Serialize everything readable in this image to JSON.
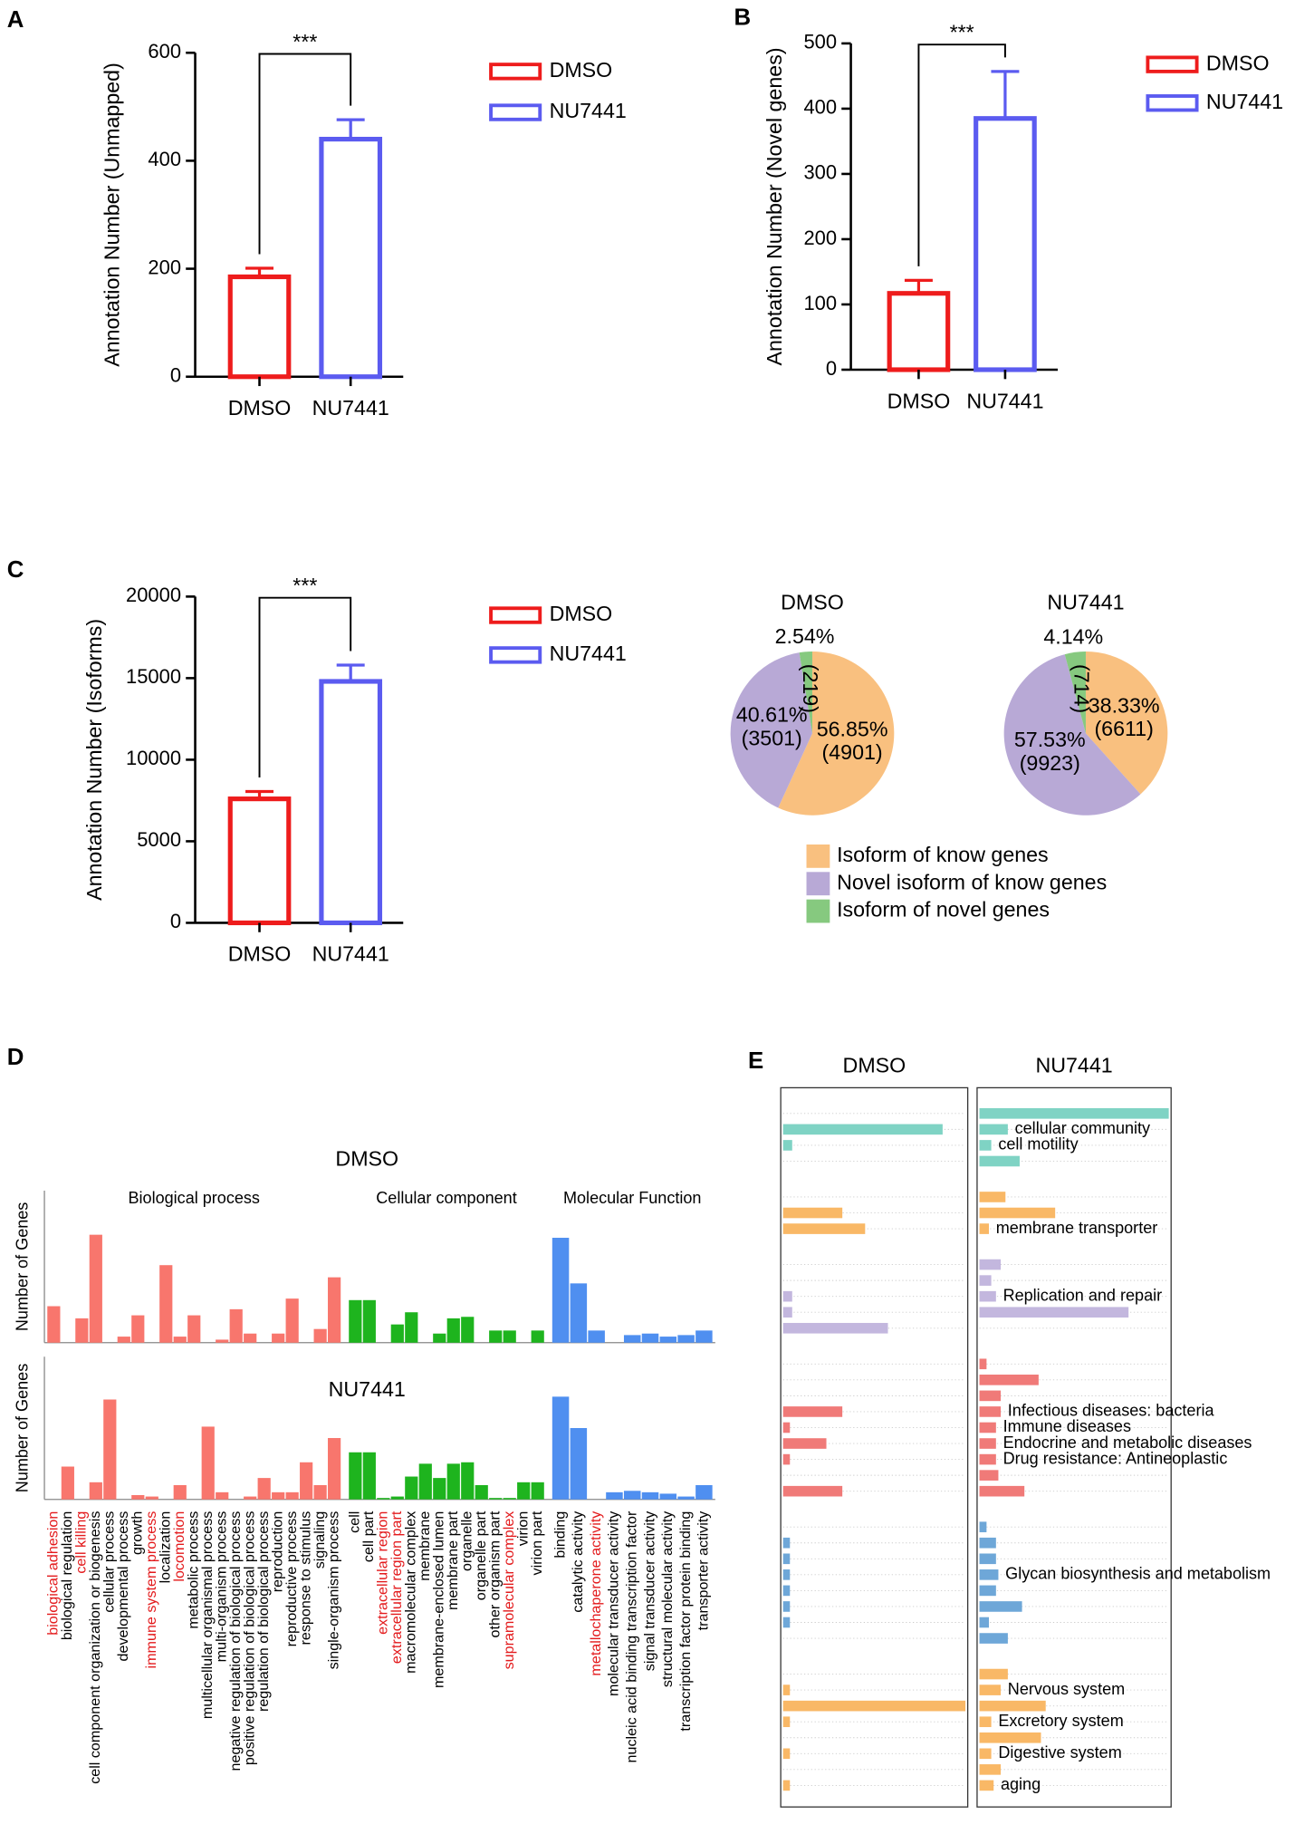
{
  "chart_data": [
    {
      "type": "bar",
      "panel": "A",
      "ylabel": "Annotation Number (Unmapped)",
      "categories": [
        "DMSO",
        "NU7441"
      ],
      "values": [
        185,
        440
      ],
      "errors": [
        16,
        36
      ],
      "colors": [
        "#ee1c1c",
        "#5b5bf0"
      ],
      "ylim": [
        0,
        600
      ],
      "yticks": [
        0,
        200,
        400,
        600
      ],
      "significance": "***"
    },
    {
      "type": "bar",
      "panel": "B",
      "ylabel": "Annotation Number (Novel genes)",
      "categories": [
        "DMSO",
        "NU7441"
      ],
      "values": [
        117,
        385
      ],
      "errors": [
        20,
        72
      ],
      "colors": [
        "#ee1c1c",
        "#5b5bf0"
      ],
      "ylim": [
        0,
        500
      ],
      "yticks": [
        0,
        100,
        200,
        300,
        400,
        500
      ],
      "significance": "***"
    },
    {
      "type": "bar",
      "panel": "C",
      "ylabel": "Annotation Number (Isoforms)",
      "categories": [
        "DMSO",
        "NU7441"
      ],
      "values": [
        7600,
        14800
      ],
      "errors": [
        450,
        1000
      ],
      "colors": [
        "#ee1c1c",
        "#5b5bf0"
      ],
      "ylim": [
        0,
        20000
      ],
      "yticks": [
        0,
        5000,
        10000,
        15000,
        20000
      ],
      "significance": "***"
    },
    {
      "type": "pie",
      "categories": [
        "Isoform of know genes",
        "Novel isoform of know genes",
        "Isoform of novel genes"
      ],
      "colors": [
        "#f9c07f",
        "#b8a9d6",
        "#86c97f"
      ],
      "series": [
        {
          "name": "DMSO",
          "values": [
            56.85,
            40.61,
            2.54
          ],
          "value_labels": [
            "56.85%",
            "40.61%",
            "2.54%"
          ],
          "count_labels": [
            "(4901)",
            "(3501)",
            "(219)"
          ]
        },
        {
          "name": "NU7441",
          "values": [
            38.33,
            57.53,
            4.14
          ],
          "value_labels": [
            "38.33%",
            "57.53%",
            "4.14%"
          ],
          "count_labels": [
            "(6611)",
            "(9923)",
            "(714)"
          ]
        }
      ]
    },
    {
      "type": "go_bar",
      "panel": "D",
      "ylabel": "Number of Genes",
      "ylim": [
        0,
        100
      ],
      "groups": [
        {
          "name": "Biological process",
          "color": "#f8766d",
          "categories": [
            "biological adhesion",
            "biological regulation",
            "cell killing",
            "cell component organization or biogenesis",
            "cellular process",
            "developmental process",
            "growth",
            "immune system process",
            "localization",
            "locomotion",
            "metabolic process",
            "multicellular organismal process",
            "multi-organism process",
            "negative regulation of biological process",
            "positive regulation of biological process",
            "regulation of biological process",
            "reproduction",
            "reproductive process",
            "response to stimulus",
            "signaling",
            "single-organism process"
          ],
          "label_colors": [
            "#e31a1c",
            "#000000",
            "#e31a1c",
            "#000000",
            "#000000",
            "#000000",
            "#000000",
            "#e31a1c",
            "#000000",
            "#e31a1c",
            "#000000",
            "#000000",
            "#000000",
            "#000000",
            "#000000",
            "#000000",
            "#000000",
            "#000000",
            "#000000",
            "#000000",
            "#000000"
          ]
        },
        {
          "name": "Cellular component",
          "color": "#1eb41e",
          "categories": [
            "cell",
            "cell part",
            "extracellular region",
            "extracellular region part",
            "macromolecular complex",
            "membrane",
            "membrane-enclosed lumen",
            "membrane part",
            "organelle",
            "organelle part",
            "other organism part",
            "supramolecular complex",
            "virion",
            "virion part"
          ],
          "label_colors": [
            "#000000",
            "#000000",
            "#e31a1c",
            "#e31a1c",
            "#000000",
            "#000000",
            "#000000",
            "#000000",
            "#000000",
            "#000000",
            "#000000",
            "#e31a1c",
            "#000000",
            "#000000"
          ]
        },
        {
          "name": "Molecular Function",
          "color": "#4f8ff0",
          "categories": [
            "binding",
            "catalytic activity",
            "metallochaperone activity",
            "molecular transducer activity",
            "nucleic acid binding transcription factor",
            "signal transducer activity",
            "structural molecular activity",
            "transcription factor protein binding",
            "transporter activity"
          ],
          "label_colors": [
            "#000000",
            "#000000",
            "#e31a1c",
            "#000000",
            "#000000",
            "#000000",
            "#000000",
            "#000000",
            "#000000"
          ]
        }
      ],
      "series": [
        {
          "name": "DMSO",
          "values": [
            24,
            0,
            16,
            71,
            0,
            4,
            18,
            0,
            51,
            4,
            18,
            0,
            2,
            22,
            6,
            0,
            6,
            29,
            0,
            9,
            43,
            28,
            28,
            0,
            12,
            20,
            0,
            6,
            16,
            17,
            0,
            8,
            8,
            0,
            8,
            69,
            39,
            8,
            0,
            5,
            6,
            4,
            5,
            8
          ]
        },
        {
          "name": "NU7441",
          "values": [
            0,
            23,
            0,
            12,
            70,
            0,
            3,
            2,
            0,
            10,
            0,
            51,
            5,
            0,
            2,
            15,
            5,
            5,
            26,
            10,
            43,
            33,
            33,
            1,
            2,
            16,
            25,
            15,
            25,
            26,
            10,
            1,
            1,
            12,
            12,
            72,
            50,
            0,
            5,
            6,
            5,
            4,
            2,
            10
          ]
        }
      ]
    },
    {
      "type": "hbar",
      "panel": "E",
      "xlim": [
        0,
        8
      ],
      "colors": [
        "#7fd3c4",
        "#7fd3c4",
        "#7fd3c4",
        "#7fd3c4",
        "#f9b866",
        "#f9b866",
        "#f9b866",
        "#c3b7de",
        "#c3b7de",
        "#c3b7de",
        "#c3b7de",
        "#c3b7de",
        "#f07a78",
        "#f07a78",
        "#f07a78",
        "#f07a78",
        "#f07a78",
        "#f07a78",
        "#f07a78",
        "#f07a78",
        "#f07a78",
        "#6ea7d8",
        "#6ea7d8",
        "#6ea7d8",
        "#6ea7d8",
        "#6ea7d8",
        "#6ea7d8",
        "#6ea7d8",
        "#6ea7d8",
        "#f9b866",
        "#f9b866",
        "#f9b866",
        "#f9b866",
        "#f9b866",
        "#f9b866",
        "#f9b866",
        "#f9b866"
      ],
      "series": [
        {
          "name": "DMSO",
          "values": [
            0,
            7,
            0.4,
            0,
            0,
            2.6,
            3.6,
            0,
            0,
            0.4,
            0.4,
            4.6,
            0,
            0,
            0,
            2.6,
            0.3,
            1.9,
            0.3,
            0,
            2.6,
            0,
            0.3,
            0.3,
            0.3,
            0.3,
            0.3,
            0.3,
            0,
            0,
            0.3,
            8,
            0.3,
            0,
            0.3,
            0,
            0.3
          ]
        },
        {
          "name": "NU7441",
          "values": [
            8,
            1.2,
            0.5,
            1.7,
            1.1,
            3.2,
            0.4,
            0.9,
            0.5,
            0.7,
            6.3,
            0,
            0.3,
            2.5,
            0.9,
            0.9,
            0.7,
            0.7,
            0.7,
            0.8,
            1.9,
            0.3,
            0.7,
            0.7,
            0.8,
            0.7,
            1.8,
            0.4,
            1.2,
            1.2,
            0.9,
            2.8,
            0.5,
            2.6,
            0.5,
            0.9,
            0.6
          ]
        }
      ],
      "annotations": [
        {
          "text": "cellular community",
          "row": 1
        },
        {
          "text": "cell motility",
          "row": 2
        },
        {
          "text": "membrane transporter",
          "row": 6
        },
        {
          "text": "Replication and repair",
          "row": 9
        },
        {
          "text": "Infectious diseases: bacteria",
          "row": 15
        },
        {
          "text": "Immune diseases",
          "row": 16
        },
        {
          "text": "Endocrine and metabolic diseases",
          "row": 17
        },
        {
          "text": "Drug resistance: Antineoplastic",
          "row": 18
        },
        {
          "text": "Glycan biosynthesis and metabolism",
          "row": 24
        },
        {
          "text": "Nervous system",
          "row": 30
        },
        {
          "text": "Excretory system",
          "row": 32
        },
        {
          "text": "Digestive system",
          "row": 34
        },
        {
          "text": "aging",
          "row": 36
        }
      ]
    }
  ]
}
